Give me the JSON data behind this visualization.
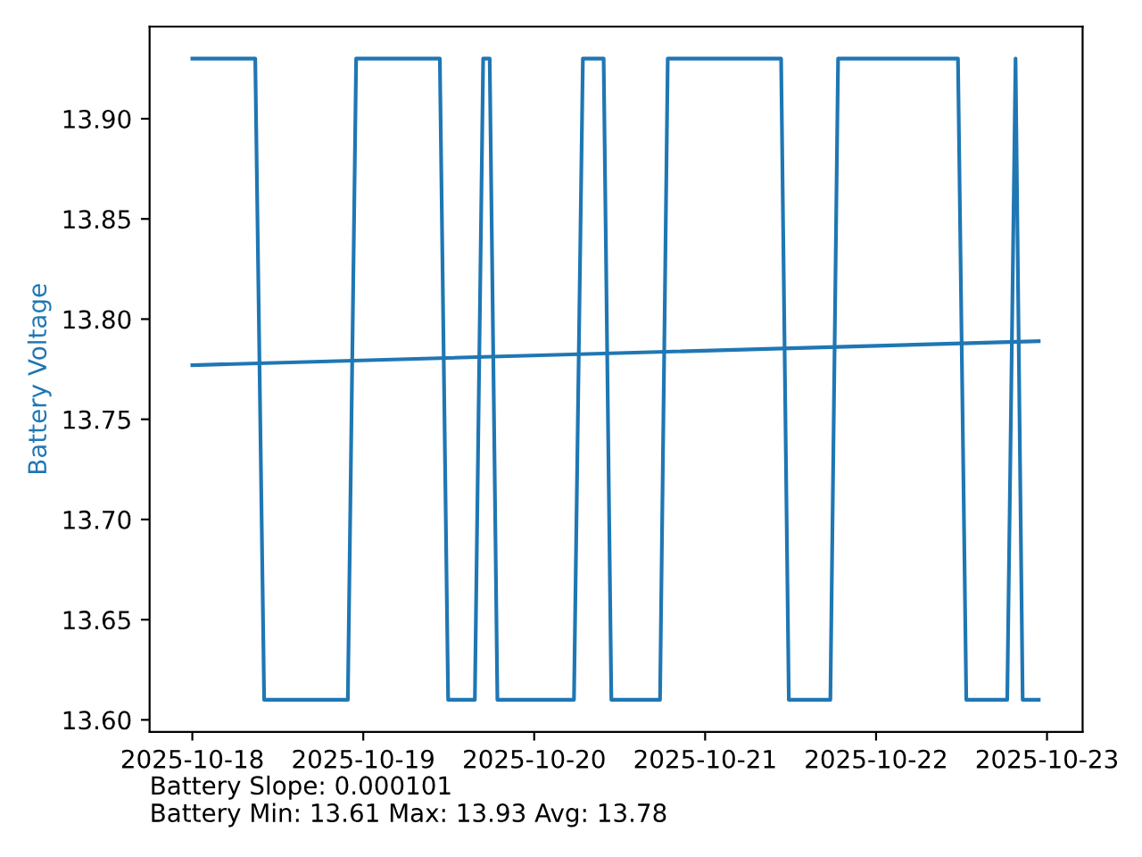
{
  "chart_data": {
    "type": "line",
    "ylabel": "Battery Voltage",
    "series": [
      {
        "color": "#1f77b4",
        "x": [
          "2025-10-18T00:00",
          "2025-10-18T08:50",
          "2025-10-18T10:05",
          "2025-10-18T21:50",
          "2025-10-18T23:00",
          "2025-10-19T10:45",
          "2025-10-19T11:55",
          "2025-10-19T15:40",
          "2025-10-19T16:50",
          "2025-10-19T17:45",
          "2025-10-19T18:50",
          "2025-10-20T05:35",
          "2025-10-20T06:50",
          "2025-10-20T09:45",
          "2025-10-20T10:50",
          "2025-10-20T17:40",
          "2025-10-20T18:45",
          "2025-10-21T10:40",
          "2025-10-21T11:45",
          "2025-10-21T17:35",
          "2025-10-21T18:40",
          "2025-10-22T11:30",
          "2025-10-22T12:40",
          "2025-10-22T18:25",
          "2025-10-22T19:35",
          "2025-10-22T20:35",
          "2025-10-22T22:50"
        ],
        "values": [
          13.93,
          13.93,
          13.61,
          13.61,
          13.93,
          13.93,
          13.61,
          13.61,
          13.93,
          13.93,
          13.61,
          13.61,
          13.93,
          13.93,
          13.61,
          13.61,
          13.93,
          13.93,
          13.61,
          13.61,
          13.93,
          13.93,
          13.61,
          13.61,
          13.93,
          13.61,
          13.61
        ]
      },
      {
        "color": "#1f77b4",
        "x": [
          "2025-10-18T00:00",
          "2025-10-22T22:50"
        ],
        "values": [
          13.777,
          13.789
        ]
      }
    ],
    "xlim": [
      "2025-10-17T18:00",
      "2025-10-23T05:00"
    ],
    "xticks": [
      "2025-10-18",
      "2025-10-19",
      "2025-10-20",
      "2025-10-21",
      "2025-10-22",
      "2025-10-23"
    ],
    "ylim": [
      13.594,
      13.946
    ],
    "yticks": [
      {
        "value": 13.6,
        "label": "13.60"
      },
      {
        "value": 13.65,
        "label": "13.65"
      },
      {
        "value": 13.7,
        "label": "13.70"
      },
      {
        "value": 13.75,
        "label": "13.75"
      },
      {
        "value": 13.8,
        "label": "13.80"
      },
      {
        "value": 13.85,
        "label": "13.85"
      },
      {
        "value": 13.9,
        "label": "13.90"
      }
    ],
    "annotations": [
      "Battery Slope: 0.000101",
      "Battery Min: 13.61 Max: 13.93 Avg: 13.78"
    ]
  }
}
